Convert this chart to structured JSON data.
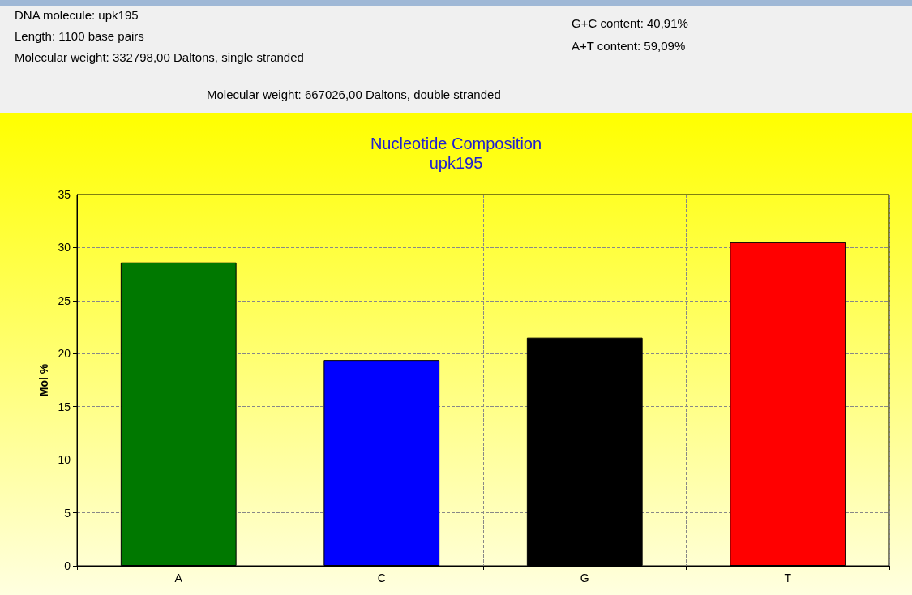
{
  "chart_data": {
    "type": "bar",
    "title": "Nucleotide Composition",
    "subtitle": "upk195",
    "ylabel": "Mol %",
    "categories": [
      "A",
      "C",
      "G",
      "T"
    ],
    "values": [
      28.6,
      19.4,
      21.5,
      30.5
    ],
    "colors": [
      "#007800",
      "#0000ff",
      "#000000",
      "#ff0000"
    ],
    "ylim": [
      0,
      35
    ],
    "yticks": [
      0,
      5,
      10,
      15,
      20,
      25,
      30,
      35
    ],
    "grid": true,
    "annotations": [
      "DNA molecule: upk195",
      "Length: 1100 base pairs",
      "Molecular weight: 332798,00 Daltons, single stranded",
      "G+C content: 40,91%",
      "A+T content: 59,09%",
      "Molecular weight: 667026,00 Daltons, double stranded"
    ]
  }
}
